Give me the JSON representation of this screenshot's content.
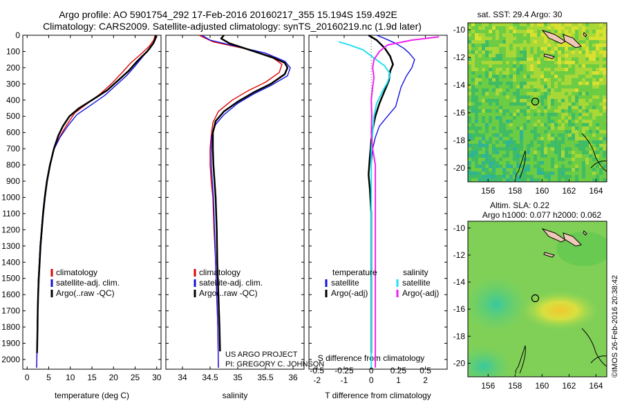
{
  "title_line1": "Argo profile: AO 5901754_292 17-Feb-2016 20160217_355 15.194S 159.492E",
  "title_line2": "Climatology: CARS2009. Satellite-adjusted climatology: synTS_20160219.nc (1.9d later)",
  "credit_line1": "US ARGO PROJECT",
  "credit_line2": "PI: GREGORY C. JOHNSON",
  "stamp": "©IMOS 26-Feb-2016 20:38:42",
  "colors": {
    "climatology": "#e00000",
    "satellite": "#1010e0",
    "argo": "#000000",
    "sal_satellite": "#20e0f0",
    "sal_argo": "#f020f0",
    "map_green": "#4cc850"
  },
  "chart_data": [
    {
      "id": "temperature",
      "type": "line",
      "xlabel": "temperature (deg C)",
      "xlim": [
        -1,
        31
      ],
      "xticks": [
        0,
        5,
        10,
        15,
        20,
        25,
        30
      ],
      "ylim": [
        2060,
        0
      ],
      "yticks": [
        0,
        100,
        200,
        300,
        400,
        500,
        600,
        700,
        800,
        900,
        1000,
        1100,
        1200,
        1300,
        1400,
        1500,
        1600,
        1700,
        1800,
        1900,
        2000
      ],
      "legend": [
        "climatology",
        "satellite-adj. clim.",
        "Argo(..raw -QC)"
      ],
      "series": [
        {
          "name": "climatology",
          "color": "#e00000",
          "points": [
            [
              29.6,
              0
            ],
            [
              29.3,
              30
            ],
            [
              28.2,
              70
            ],
            [
              26.2,
              120
            ],
            [
              24,
              170
            ],
            [
              22,
              230
            ],
            [
              19.5,
              300
            ],
            [
              17,
              360
            ],
            [
              14,
              420
            ],
            [
              11,
              480
            ],
            [
              9,
              560
            ],
            [
              7.5,
              630
            ],
            [
              6.2,
              700
            ],
            [
              5.2,
              800
            ],
            [
              4.5,
              900
            ],
            [
              4,
              1000
            ],
            [
              3.6,
              1100
            ],
            [
              3.3,
              1200
            ],
            [
              3,
              1300
            ],
            [
              2.8,
              1400
            ],
            [
              2.6,
              1500
            ],
            [
              2.5,
              1600
            ],
            [
              2.4,
              1700
            ],
            [
              2.35,
              1800
            ],
            [
              2.3,
              1900
            ],
            [
              2.25,
              2000
            ],
            [
              2.2,
              2050
            ]
          ]
        },
        {
          "name": "satellite-adj. clim.",
          "color": "#1010e0",
          "points": [
            [
              29.9,
              0
            ],
            [
              29.5,
              40
            ],
            [
              28.5,
              80
            ],
            [
              26.8,
              130
            ],
            [
              25,
              190
            ],
            [
              23,
              250
            ],
            [
              20.5,
              310
            ],
            [
              18,
              370
            ],
            [
              14.8,
              430
            ],
            [
              11.5,
              490
            ],
            [
              9.4,
              560
            ],
            [
              7.6,
              630
            ],
            [
              6.3,
              700
            ],
            [
              5.2,
              800
            ],
            [
              4.5,
              900
            ],
            [
              4,
              1000
            ],
            [
              3.6,
              1100
            ],
            [
              3.3,
              1200
            ],
            [
              3,
              1300
            ],
            [
              2.8,
              1400
            ],
            [
              2.6,
              1500
            ],
            [
              2.5,
              1600
            ],
            [
              2.4,
              1700
            ],
            [
              2.35,
              1800
            ],
            [
              2.3,
              1900
            ],
            [
              2.25,
              2000
            ],
            [
              2.2,
              2050
            ]
          ]
        },
        {
          "name": "Argo(..raw -QC)",
          "color": "#000000",
          "points": [
            [
              29.8,
              0
            ],
            [
              29.7,
              20
            ],
            [
              29.2,
              50
            ],
            [
              27.8,
              100
            ],
            [
              25.5,
              160
            ],
            [
              23.5,
              220
            ],
            [
              21,
              280
            ],
            [
              18.5,
              340
            ],
            [
              15,
              400
            ],
            [
              12,
              450
            ],
            [
              9.8,
              500
            ],
            [
              8.3,
              560
            ],
            [
              7.2,
              620
            ],
            [
              6.2,
              700
            ],
            [
              5.3,
              800
            ],
            [
              4.6,
              900
            ],
            [
              4.1,
              1000
            ],
            [
              3.7,
              1100
            ],
            [
              3.4,
              1200
            ],
            [
              3.1,
              1300
            ],
            [
              2.9,
              1400
            ],
            [
              2.7,
              1500
            ],
            [
              2.55,
              1600
            ],
            [
              2.45,
              1700
            ],
            [
              2.4,
              1800
            ],
            [
              2.35,
              1900
            ],
            [
              2.3,
              1960
            ]
          ]
        }
      ]
    },
    {
      "id": "salinity",
      "type": "line",
      "xlabel": "salinity",
      "xlim": [
        33.7,
        36.2
      ],
      "xticks": [
        34,
        34.5,
        35,
        35.5,
        36
      ],
      "ylim": [
        2060,
        0
      ],
      "legend": [
        "climatology",
        "satellite-adj. clim.",
        "Argo(..raw -QC)"
      ],
      "series": [
        {
          "name": "climatology",
          "color": "#e00000",
          "points": [
            [
              34.3,
              0
            ],
            [
              34.55,
              40
            ],
            [
              35.1,
              80
            ],
            [
              35.6,
              130
            ],
            [
              35.8,
              180
            ],
            [
              35.75,
              230
            ],
            [
              35.5,
              290
            ],
            [
              35.2,
              340
            ],
            [
              34.9,
              400
            ],
            [
              34.65,
              470
            ],
            [
              34.55,
              540
            ],
            [
              34.52,
              620
            ],
            [
              34.5,
              700
            ],
            [
              34.5,
              800
            ],
            [
              34.52,
              900
            ],
            [
              34.55,
              1000
            ],
            [
              34.57,
              1200
            ],
            [
              34.6,
              1400
            ],
            [
              34.62,
              1600
            ],
            [
              34.64,
              1800
            ],
            [
              34.65,
              2050
            ]
          ]
        },
        {
          "name": "satellite-adj. clim.",
          "color": "#1010e0",
          "points": [
            [
              34.35,
              0
            ],
            [
              34.5,
              30
            ],
            [
              35,
              70
            ],
            [
              35.5,
              110
            ],
            [
              35.85,
              160
            ],
            [
              35.95,
              200
            ],
            [
              35.9,
              250
            ],
            [
              35.6,
              310
            ],
            [
              35.3,
              360
            ],
            [
              35,
              420
            ],
            [
              34.75,
              490
            ],
            [
              34.6,
              550
            ],
            [
              34.53,
              620
            ],
            [
              34.52,
              700
            ],
            [
              34.52,
              800
            ],
            [
              34.54,
              900
            ],
            [
              34.56,
              1000
            ],
            [
              34.58,
              1200
            ],
            [
              34.6,
              1400
            ],
            [
              34.62,
              1600
            ],
            [
              34.64,
              1800
            ],
            [
              34.65,
              2050
            ]
          ]
        },
        {
          "name": "Argo(..raw -QC)",
          "color": "#000000",
          "points": [
            [
              34.75,
              0
            ],
            [
              34.7,
              20
            ],
            [
              34.85,
              50
            ],
            [
              35.3,
              100
            ],
            [
              35.65,
              140
            ],
            [
              35.85,
              170
            ],
            [
              35.9,
              200
            ],
            [
              35.85,
              240
            ],
            [
              35.6,
              300
            ],
            [
              35.3,
              350
            ],
            [
              35,
              410
            ],
            [
              34.75,
              470
            ],
            [
              34.6,
              530
            ],
            [
              34.55,
              600
            ],
            [
              34.55,
              700
            ],
            [
              34.56,
              800
            ],
            [
              34.58,
              900
            ],
            [
              34.6,
              1000
            ],
            [
              34.62,
              1200
            ],
            [
              34.63,
              1400
            ],
            [
              34.65,
              1600
            ],
            [
              34.67,
              1800
            ],
            [
              34.68,
              1950
            ]
          ]
        }
      ]
    },
    {
      "id": "difference",
      "type": "line",
      "xlabel": "T difference from climatology",
      "xlabel_top": "S difference from climatology",
      "xlim": [
        -2.3,
        2.8
      ],
      "xticks": [
        -2,
        -1,
        0,
        1,
        2
      ],
      "xticks_s": [
        -0.5,
        -0.25,
        0,
        0.25,
        0.5
      ],
      "xticks_s_labels": [
        "-0.5",
        "-0.25",
        "0",
        "0.25",
        "0.5"
      ],
      "ylim": [
        2060,
        0
      ],
      "legend_headers": [
        "temperature",
        "salinity"
      ],
      "legend": [
        "satellite",
        "Argo(-adj)",
        "satellite",
        "Argo(-adj)"
      ],
      "series": [
        {
          "name": "T satellite",
          "color": "#1010e0",
          "points": [
            [
              0.2,
              0
            ],
            [
              0.5,
              20
            ],
            [
              0.9,
              50
            ],
            [
              1.2,
              80
            ],
            [
              1.4,
              110
            ],
            [
              1.6,
              150
            ],
            [
              1.5,
              200
            ],
            [
              1.3,
              250
            ],
            [
              1.1,
              320
            ],
            [
              1,
              380
            ],
            [
              0.9,
              440
            ],
            [
              0.6,
              500
            ],
            [
              0.3,
              560
            ],
            [
              0.15,
              630
            ],
            [
              0.05,
              700
            ],
            [
              0,
              800
            ],
            [
              0,
              1000
            ],
            [
              0,
              2050
            ]
          ]
        },
        {
          "name": "T Argo(-adj)",
          "color": "#000000",
          "points": [
            [
              -0.1,
              0
            ],
            [
              0.2,
              30
            ],
            [
              0.5,
              80
            ],
            [
              0.7,
              130
            ],
            [
              0.8,
              180
            ],
            [
              0.7,
              220
            ],
            [
              0.65,
              280
            ],
            [
              0.5,
              340
            ],
            [
              0.3,
              420
            ],
            [
              0.15,
              500
            ],
            [
              0.05,
              580
            ],
            [
              0,
              650
            ],
            [
              -0.05,
              750
            ],
            [
              -0.1,
              860
            ],
            [
              -0.05,
              950
            ],
            [
              0,
              1100
            ],
            [
              0,
              1960
            ]
          ]
        },
        {
          "name": "S satellite",
          "color": "#20e0f0",
          "points": [
            [
              -1.2,
              40
            ],
            [
              -0.8,
              60
            ],
            [
              -0.3,
              90
            ],
            [
              0.1,
              140
            ],
            [
              0.5,
              190
            ],
            [
              0.7,
              240
            ],
            [
              0.6,
              290
            ],
            [
              0.4,
              350
            ],
            [
              0.2,
              420
            ],
            [
              0.1,
              500
            ],
            [
              0.05,
              600
            ],
            [
              0,
              700
            ],
            [
              0,
              2050
            ]
          ]
        },
        {
          "name": "S Argo(-adj)",
          "color": "#f020f0",
          "points": [
            [
              2.5,
              10
            ],
            [
              1.5,
              30
            ],
            [
              0.6,
              60
            ],
            [
              0.3,
              100
            ],
            [
              0.1,
              150
            ],
            [
              0.05,
              200
            ],
            [
              0.1,
              260
            ],
            [
              0.05,
              320
            ],
            [
              0,
              400
            ],
            [
              0.02,
              500
            ],
            [
              0,
              600
            ],
            [
              0.05,
              700
            ],
            [
              0.15,
              800
            ],
            [
              0.15,
              900
            ],
            [
              0.15,
              1000
            ],
            [
              0.15,
              1500
            ],
            [
              0.15,
              2050
            ]
          ]
        }
      ]
    }
  ],
  "maps": {
    "sst": {
      "title": "sat. SST: 29.4  Argo: 30",
      "xticks": [
        156,
        158,
        160,
        162,
        164
      ],
      "yticks": [
        -10,
        -12,
        -14,
        -16,
        -18,
        -20
      ],
      "xlim": [
        154.5,
        164.8
      ],
      "ylim": [
        -21,
        -9.5
      ],
      "argo_lon": 159.492,
      "argo_lat": -15.194
    },
    "sla": {
      "title_line1": "Altim. SLA: 0.22",
      "title_line2": "Argo h1000: 0.077 h2000: 0.062",
      "xticks": [
        156,
        158,
        160,
        162,
        164
      ],
      "yticks": [
        -10,
        -12,
        -14,
        -16,
        -18,
        -20
      ],
      "xlim": [
        154.5,
        164.8
      ],
      "ylim": [
        -21,
        -9.5
      ],
      "argo_lon": 159.492,
      "argo_lat": -15.194
    }
  }
}
